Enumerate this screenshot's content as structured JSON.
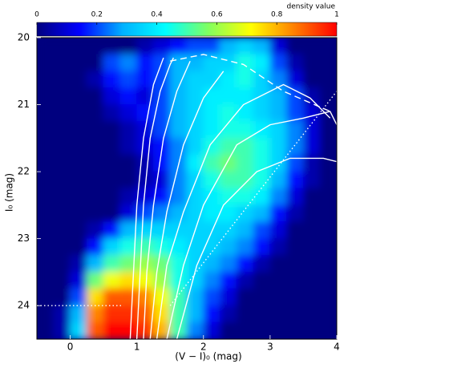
{
  "chart_data": {
    "type": "heatmap",
    "x_label": "(V − I)₀ (mag)",
    "y_label": "I₀ (mag)",
    "colorbar_label": "density value",
    "colormap": [
      "#00007f",
      "#0000ff",
      "#00b0ff",
      "#00ffff",
      "#80ff60",
      "#ffff00",
      "#ff8000",
      "#ff0000"
    ],
    "clim": [
      0,
      1
    ],
    "cticks": [
      0,
      0.2,
      0.4,
      0.6,
      0.8,
      1
    ],
    "xlim": [
      -0.5,
      4
    ],
    "ylim": [
      24.5,
      20
    ],
    "xticks": [
      0,
      1,
      2,
      3,
      4
    ],
    "yticks": [
      20,
      21,
      22,
      23,
      24
    ],
    "x_bins": [
      -0.5,
      -0.25,
      0,
      0.25,
      0.5,
      0.75,
      1,
      1.25,
      1.5,
      1.75,
      2,
      2.25,
      2.5,
      2.75,
      3,
      3.25,
      3.5,
      3.75,
      4
    ],
    "y_bins": [
      20,
      20.25,
      20.5,
      20.75,
      21,
      21.25,
      21.5,
      21.75,
      22,
      22.25,
      22.5,
      22.75,
      23,
      23.25,
      23.5,
      23.75,
      24,
      24.25,
      24.5
    ],
    "z": [
      [
        0,
        0,
        0,
        0,
        0,
        0,
        0.05,
        0.1,
        0.15,
        0.2,
        0.2,
        0.3,
        0.35,
        0.3,
        0.1,
        0,
        0,
        0
      ],
      [
        0,
        0,
        0,
        0,
        0.2,
        0.25,
        0.15,
        0.2,
        0.3,
        0.3,
        0.35,
        0.35,
        0.45,
        0.4,
        0.2,
        0.05,
        0,
        0
      ],
      [
        0,
        0,
        0,
        0.05,
        0.15,
        0.2,
        0.15,
        0.2,
        0.3,
        0.35,
        0.35,
        0.4,
        0.45,
        0.35,
        0.25,
        0.1,
        0,
        0
      ],
      [
        0,
        0,
        0,
        0,
        0.1,
        0.15,
        0.1,
        0.2,
        0.3,
        0.35,
        0.4,
        0.4,
        0.4,
        0.35,
        0.3,
        0.2,
        0.05,
        0
      ],
      [
        0,
        0,
        0,
        0,
        0.05,
        0.1,
        0.15,
        0.2,
        0.3,
        0.35,
        0.4,
        0.45,
        0.4,
        0.35,
        0.3,
        0.2,
        0.1,
        0
      ],
      [
        0,
        0,
        0,
        0,
        0,
        0.05,
        0.1,
        0.2,
        0.3,
        0.35,
        0.4,
        0.45,
        0.45,
        0.4,
        0.35,
        0.25,
        0.1,
        0
      ],
      [
        0,
        0,
        0,
        0,
        0,
        0.05,
        0.1,
        0.15,
        0.25,
        0.35,
        0.45,
        0.5,
        0.5,
        0.45,
        0.35,
        0.25,
        0.1,
        0
      ],
      [
        0,
        0,
        0,
        0,
        0,
        0,
        0.05,
        0.15,
        0.25,
        0.4,
        0.5,
        0.55,
        0.5,
        0.45,
        0.35,
        0.2,
        0.05,
        0
      ],
      [
        0,
        0,
        0,
        0,
        0,
        0,
        0.05,
        0.1,
        0.25,
        0.35,
        0.45,
        0.5,
        0.5,
        0.45,
        0.3,
        0.15,
        0.05,
        0
      ],
      [
        0,
        0,
        0,
        0,
        0,
        0.05,
        0.1,
        0.15,
        0.25,
        0.35,
        0.4,
        0.45,
        0.45,
        0.4,
        0.25,
        0.1,
        0,
        0
      ],
      [
        0,
        0,
        0,
        0,
        0,
        0.1,
        0.2,
        0.25,
        0.3,
        0.35,
        0.4,
        0.4,
        0.35,
        0.3,
        0.15,
        0.05,
        0,
        0
      ],
      [
        0,
        0,
        0,
        0.05,
        0.15,
        0.3,
        0.35,
        0.35,
        0.35,
        0.35,
        0.35,
        0.35,
        0.3,
        0.2,
        0.1,
        0,
        0,
        0
      ],
      [
        0,
        0,
        0,
        0.15,
        0.35,
        0.45,
        0.5,
        0.45,
        0.4,
        0.35,
        0.35,
        0.3,
        0.25,
        0.15,
        0.05,
        0,
        0,
        0
      ],
      [
        0,
        0,
        0.05,
        0.3,
        0.5,
        0.55,
        0.6,
        0.55,
        0.45,
        0.35,
        0.3,
        0.25,
        0.15,
        0.05,
        0,
        0,
        0,
        0
      ],
      [
        0,
        0,
        0.1,
        0.55,
        0.7,
        0.75,
        0.7,
        0.6,
        0.45,
        0.35,
        0.25,
        0.15,
        0.05,
        0,
        0,
        0,
        0,
        0
      ],
      [
        0,
        0,
        0.2,
        0.75,
        0.9,
        0.9,
        0.85,
        0.7,
        0.5,
        0.3,
        0.2,
        0.1,
        0,
        0,
        0,
        0,
        0,
        0
      ],
      [
        0,
        0.05,
        0.3,
        0.85,
        0.95,
        0.95,
        0.9,
        0.75,
        0.5,
        0.3,
        0.15,
        0.05,
        0,
        0,
        0,
        0,
        0,
        0
      ],
      [
        0,
        0.05,
        0.35,
        0.9,
        1,
        1,
        0.95,
        0.8,
        0.5,
        0.25,
        0.1,
        0,
        0,
        0,
        0,
        0,
        0,
        0
      ]
    ],
    "series": [
      {
        "color": "#ffffff",
        "line_style": "solid",
        "x": [
          0.9,
          0.95,
          1.0,
          1.1,
          1.25,
          1.4
        ],
        "values": [
          24.5,
          23.5,
          22.5,
          21.5,
          20.7,
          20.3
        ]
      },
      {
        "color": "#ffffff",
        "line_style": "solid",
        "x": [
          1.0,
          1.05,
          1.1,
          1.2,
          1.35,
          1.5,
          1.55
        ],
        "values": [
          24.5,
          23.5,
          22.5,
          21.5,
          20.8,
          20.4,
          20.3
        ]
      },
      {
        "color": "#ffffff",
        "line_style": "solid",
        "x": [
          1.1,
          1.15,
          1.25,
          1.4,
          1.6,
          1.8
        ],
        "values": [
          24.5,
          23.5,
          22.5,
          21.5,
          20.8,
          20.35
        ]
      },
      {
        "color": "#ffffff",
        "line_style": "solid",
        "x": [
          1.2,
          1.3,
          1.45,
          1.7,
          2.0,
          2.3
        ],
        "values": [
          24.5,
          23.5,
          22.6,
          21.6,
          20.9,
          20.5
        ]
      },
      {
        "color": "#ffffff",
        "line_style": "solid",
        "x": [
          1.3,
          1.45,
          1.7,
          2.1,
          2.6,
          3.2,
          3.6,
          3.9
        ],
        "values": [
          24.5,
          23.4,
          22.6,
          21.6,
          21.0,
          20.7,
          20.9,
          21.2
        ]
      },
      {
        "color": "#ffffff",
        "line_style": "solid",
        "x": [
          1.45,
          1.7,
          2.0,
          2.5,
          3.0,
          3.5,
          3.9,
          4.0
        ],
        "values": [
          24.5,
          23.4,
          22.5,
          21.6,
          21.3,
          21.2,
          21.1,
          21.3
        ]
      },
      {
        "color": "#ffffff",
        "line_style": "solid",
        "x": [
          1.6,
          1.9,
          2.3,
          2.8,
          3.3,
          3.8,
          4.0
        ],
        "values": [
          24.5,
          23.4,
          22.5,
          22.0,
          21.8,
          21.8,
          21.85
        ]
      },
      {
        "color": "#ffffff",
        "line_style": "dashed",
        "x": [
          1.5,
          2.0,
          2.6,
          3.2,
          3.9
        ],
        "values": [
          20.35,
          20.25,
          20.4,
          20.8,
          21.1
        ]
      },
      {
        "color": "#ffffff",
        "line_style": "dotted",
        "x": [
          -0.5,
          0.8
        ],
        "values": [
          24,
          24
        ]
      },
      {
        "color": "#ffffff",
        "line_style": "dotted",
        "x": [
          1.5,
          4.0
        ],
        "values": [
          24,
          20.8
        ]
      }
    ]
  }
}
